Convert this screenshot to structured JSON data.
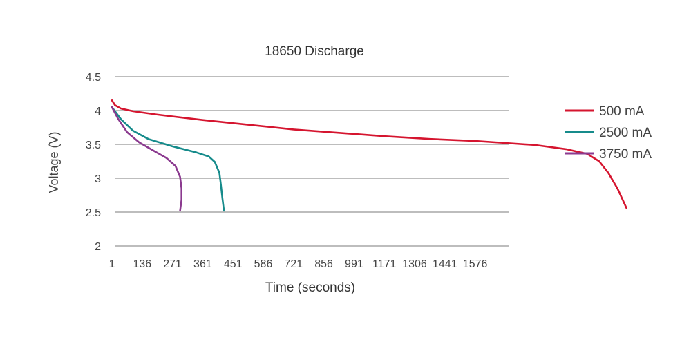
{
  "chart_data": {
    "type": "line",
    "title": "18650 Discharge",
    "xlabel": "Time (seconds)",
    "ylabel": "Voltage (V)",
    "x_tick_labels": [
      "1",
      "136",
      "271",
      "361",
      "451",
      "586",
      "721",
      "856",
      "991",
      "1171",
      "1306",
      "1441",
      "1576"
    ],
    "y_ticks": [
      4.5,
      4,
      3.5,
      3,
      2.5,
      2
    ],
    "y_tick_labels": [
      "4.5",
      "4",
      "3.5",
      "3",
      "2.5",
      "2"
    ],
    "ylim": [
      2,
      4.5
    ],
    "grid": "horizontal",
    "legend_position": "right",
    "series": [
      {
        "name": "500 mA",
        "color": "#D5152F",
        "points": [
          [
            0,
            4.15
          ],
          [
            0.1,
            4.08
          ],
          [
            0.3,
            4.03
          ],
          [
            0.7,
            3.99
          ],
          [
            1.5,
            3.94
          ],
          [
            3,
            3.86
          ],
          [
            4.5,
            3.79
          ],
          [
            6,
            3.72
          ],
          [
            7.5,
            3.67
          ],
          [
            9,
            3.62
          ],
          [
            10.5,
            3.58
          ],
          [
            12,
            3.55
          ],
          [
            13,
            3.52
          ],
          [
            14,
            3.49
          ],
          [
            15,
            3.43
          ],
          [
            15.7,
            3.36
          ],
          [
            16.1,
            3.25
          ],
          [
            16.4,
            3.08
          ],
          [
            16.7,
            2.85
          ],
          [
            17,
            2.56
          ]
        ]
      },
      {
        "name": "2500 mA",
        "color": "#168B8B",
        "points": [
          [
            0,
            4.05
          ],
          [
            0.3,
            3.87
          ],
          [
            0.7,
            3.7
          ],
          [
            1.2,
            3.58
          ],
          [
            2,
            3.47
          ],
          [
            2.8,
            3.38
          ],
          [
            3.2,
            3.32
          ],
          [
            3.4,
            3.24
          ],
          [
            3.55,
            3.08
          ],
          [
            3.6,
            2.9
          ],
          [
            3.65,
            2.7
          ],
          [
            3.7,
            2.52
          ]
        ]
      },
      {
        "name": "3750 mA",
        "color": "#8B3A8F",
        "points": [
          [
            0,
            4.05
          ],
          [
            0.2,
            3.88
          ],
          [
            0.5,
            3.68
          ],
          [
            0.9,
            3.53
          ],
          [
            1.4,
            3.4
          ],
          [
            1.8,
            3.3
          ],
          [
            2.1,
            3.18
          ],
          [
            2.25,
            3.02
          ],
          [
            2.3,
            2.85
          ],
          [
            2.3,
            2.68
          ],
          [
            2.25,
            2.52
          ]
        ]
      }
    ]
  }
}
